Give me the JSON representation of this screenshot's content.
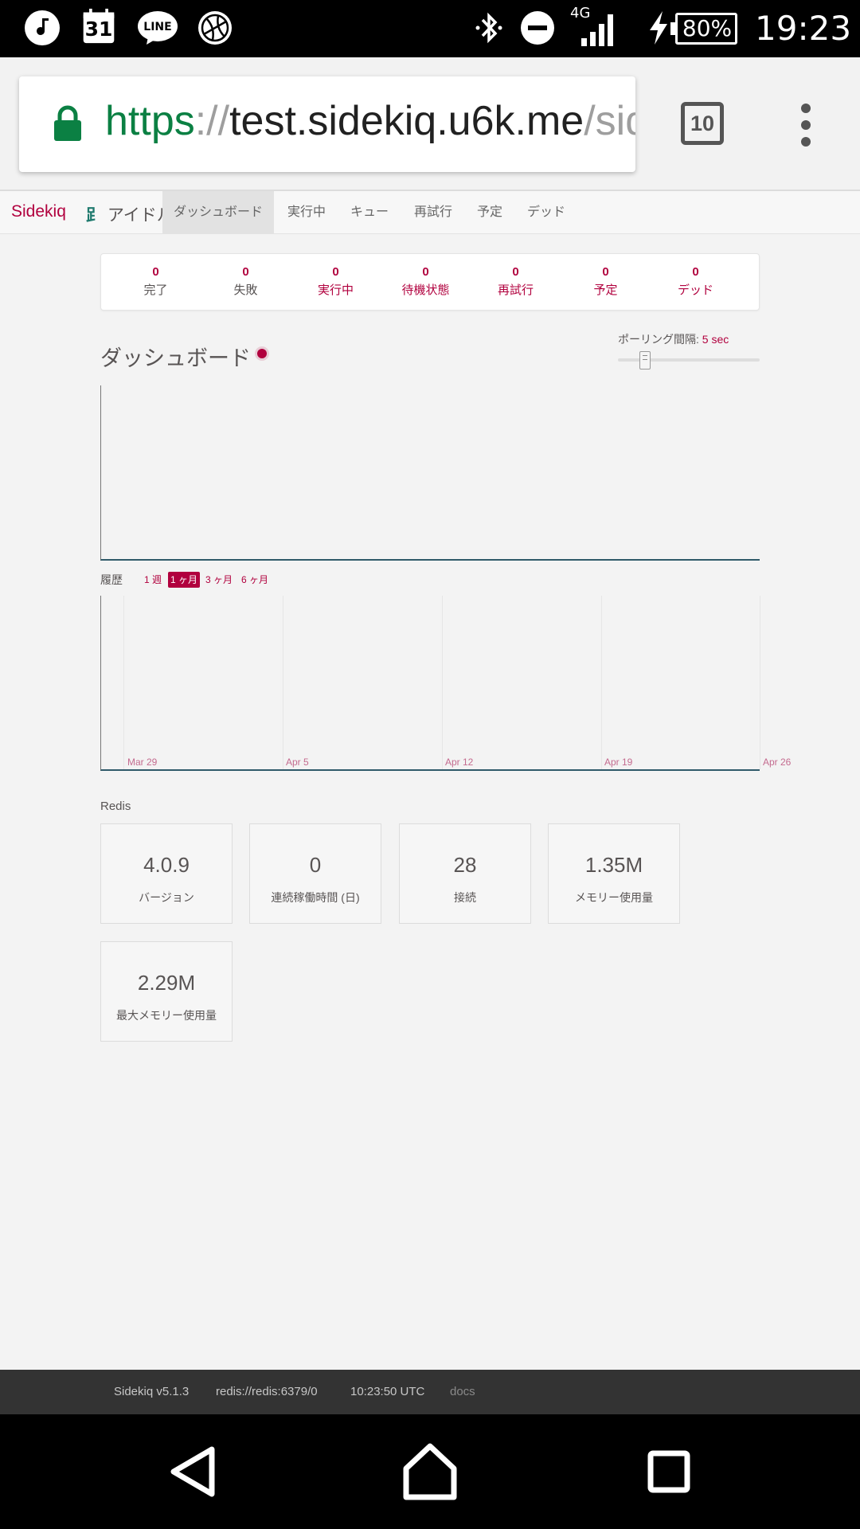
{
  "status_bar": {
    "icons_left": [
      "music-note-icon",
      "calendar-icon",
      "line-app-icon",
      "basketball-icon"
    ],
    "calendar_day": "31",
    "line_label": "LINE",
    "network": "4G",
    "battery": "80%",
    "time": "19:23"
  },
  "browser": {
    "url_scheme": "https",
    "url_sep": "://",
    "url_host": "test.sidekiq.u6k.me",
    "url_path": "/sidekiq",
    "tab_count": "10"
  },
  "nav": {
    "brand": "Sidekiq",
    "status": "アイドル",
    "items": [
      {
        "label": "ダッシュボード",
        "active": true
      },
      {
        "label": "実行中"
      },
      {
        "label": "キュー"
      },
      {
        "label": "再試行"
      },
      {
        "label": "予定"
      },
      {
        "label": "デッド"
      }
    ]
  },
  "summary": [
    {
      "value": "0",
      "label": "完了"
    },
    {
      "value": "0",
      "label": "失敗"
    },
    {
      "value": "0",
      "label": "実行中"
    },
    {
      "value": "0",
      "label": "待機状態"
    },
    {
      "value": "0",
      "label": "再試行"
    },
    {
      "value": "0",
      "label": "予定"
    },
    {
      "value": "0",
      "label": "デッド"
    }
  ],
  "dashboard": {
    "title": "ダッシュボード",
    "poll_label": "ポーリング間隔:",
    "poll_value": "5 sec",
    "poll_seconds": 5
  },
  "history": {
    "label": "履歴",
    "ranges": [
      "1 週",
      "1 ヶ月",
      "3 ヶ月",
      "6 ヶ月"
    ],
    "active_range": "1 ヶ月"
  },
  "chart_data": [
    {
      "type": "line",
      "title": "",
      "series": [],
      "x": [],
      "grid": false
    },
    {
      "type": "line",
      "title": "",
      "x_ticks": [
        "Mar 29",
        "Apr 5",
        "Apr 12",
        "Apr 19",
        "Apr 26"
      ],
      "series": [],
      "grid": true
    }
  ],
  "redis": {
    "title": "Redis",
    "stats": [
      {
        "value": "4.0.9",
        "label": "バージョン"
      },
      {
        "value": "0",
        "label": "連続稼働時間 (日)"
      },
      {
        "value": "28",
        "label": "接続"
      },
      {
        "value": "1.35M",
        "label": "メモリー使用量"
      },
      {
        "value": "2.29M",
        "label": "最大メモリー使用量"
      }
    ]
  },
  "footer": {
    "version": "Sidekiq v5.1.3",
    "redis_url": "redis://redis:6379/0",
    "time": "10:23:50 UTC",
    "docs": "docs"
  },
  "colors": {
    "accent": "#b1003e",
    "footer_bg": "#333333",
    "chart_axis": "#2f5a69"
  }
}
